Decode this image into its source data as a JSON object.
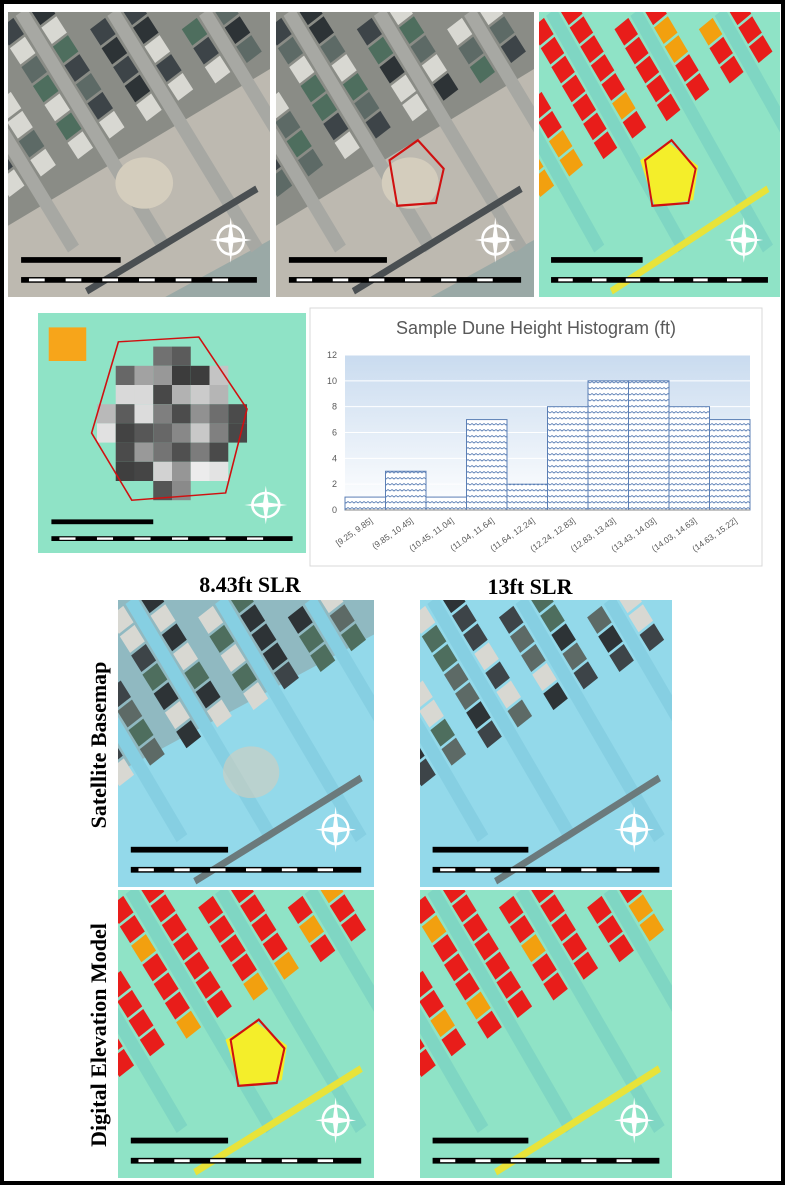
{
  "chart_data": {
    "type": "bar",
    "title": "Sample Dune Height Histogram (ft)",
    "categories": [
      "[9.25, 9.85]",
      "(9.85, 10.45]",
      "(10.45, 11.04]",
      "(11.04, 11.64]",
      "(11.64, 12.24]",
      "(12.24, 12.83]",
      "(12.83, 13.43]",
      "(13.43, 14.03]",
      "(14.03, 14.63]",
      "(14.63, 15.22]"
    ],
    "values": [
      1,
      3,
      1,
      7,
      2,
      8,
      10,
      10,
      8,
      7
    ],
    "color": "#5b7fb5",
    "ylim": [
      0,
      12
    ],
    "yticks": [
      0,
      2,
      4,
      6,
      8,
      10,
      12
    ],
    "grid": true
  },
  "figure": {
    "columns": [
      "8.43ft SLR",
      "13ft SLR"
    ],
    "rows": [
      "Satellite Basemap",
      "Digital Elevation Model"
    ]
  }
}
